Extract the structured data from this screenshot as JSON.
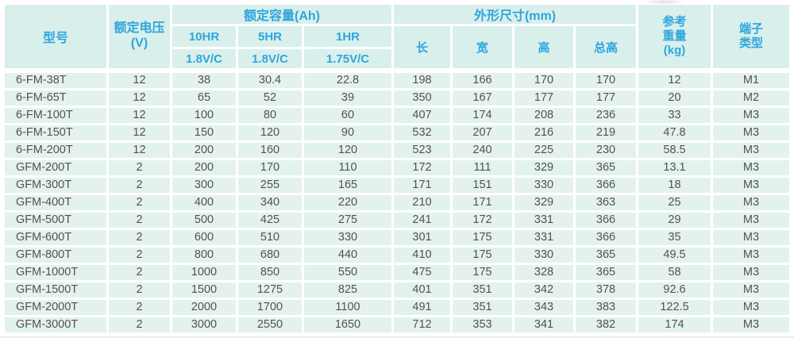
{
  "colors": {
    "background": "#ffffff",
    "header_bg": "#d9efec",
    "row_bg": "#e4f2ef",
    "header_text": "#2ea6db",
    "body_text": "#525252"
  },
  "table": {
    "header": {
      "model": "型号",
      "voltage_line1": "额定电压",
      "voltage_line2": "(V)",
      "capacity_group": "额定容量(Ah)",
      "capacity_cols": [
        {
          "rate": "10HR",
          "cutoff": "1.8V/C"
        },
        {
          "rate": "5HR",
          "cutoff": "1.8V/C"
        },
        {
          "rate": "1HR",
          "cutoff": "1.75V/C"
        }
      ],
      "dimensions_group": "外形尺寸(mm)",
      "dimension_cols": [
        "长",
        "宽",
        "高",
        "总高"
      ],
      "weight_line1": "参考",
      "weight_line2": "重量",
      "weight_line3": "(kg)",
      "terminal_line1": "端子",
      "terminal_line2": "类型"
    },
    "columns_semantic": [
      "cell-model",
      "cell-rated-voltage",
      "cell-capacity-10hr",
      "cell-capacity-5hr",
      "cell-capacity-1hr",
      "cell-length",
      "cell-width",
      "cell-height",
      "cell-total-height",
      "cell-weight",
      "cell-terminal-type"
    ],
    "rows": [
      [
        "6-FM-38T",
        12,
        38,
        30.4,
        22.8,
        198,
        166,
        170,
        170,
        12,
        "M1"
      ],
      [
        "6-FM-65T",
        12,
        65,
        52,
        39,
        350,
        167,
        177,
        177,
        20,
        "M2"
      ],
      [
        "6-FM-100T",
        12,
        100,
        80,
        60,
        407,
        174,
        208,
        236,
        33,
        "M3"
      ],
      [
        "6-FM-150T",
        12,
        150,
        120,
        90,
        532,
        207,
        216,
        219,
        47.8,
        "M3"
      ],
      [
        "6-FM-200T",
        12,
        200,
        160,
        120,
        523,
        240,
        225,
        230,
        58.5,
        "M3"
      ],
      [
        "GFM-200T",
        2,
        200,
        170,
        110,
        172,
        111,
        329,
        365,
        13.1,
        "M3"
      ],
      [
        "GFM-300T",
        2,
        300,
        255,
        165,
        171,
        151,
        330,
        366,
        18,
        "M3"
      ],
      [
        "GFM-400T",
        2,
        400,
        340,
        220,
        210,
        171,
        329,
        363,
        25,
        "M3"
      ],
      [
        "GFM-500T",
        2,
        500,
        425,
        275,
        241,
        172,
        331,
        366,
        29,
        "M3"
      ],
      [
        "GFM-600T",
        2,
        600,
        510,
        330,
        301,
        175,
        331,
        366,
        35,
        "M3"
      ],
      [
        "GFM-800T",
        2,
        800,
        680,
        440,
        410,
        175,
        330,
        365,
        49.5,
        "M3"
      ],
      [
        "GFM-1000T",
        2,
        1000,
        850,
        550,
        475,
        175,
        328,
        365,
        58,
        "M3"
      ],
      [
        "GFM-1500T",
        2,
        1500,
        1275,
        825,
        401,
        351,
        342,
        378,
        92.6,
        "M3"
      ],
      [
        "GFM-2000T",
        2,
        2000,
        1700,
        1100,
        491,
        351,
        343,
        383,
        122.5,
        "M3"
      ],
      [
        "GFM-3000T",
        2,
        3000,
        2550,
        1650,
        712,
        353,
        341,
        382,
        174,
        "M3"
      ]
    ]
  }
}
